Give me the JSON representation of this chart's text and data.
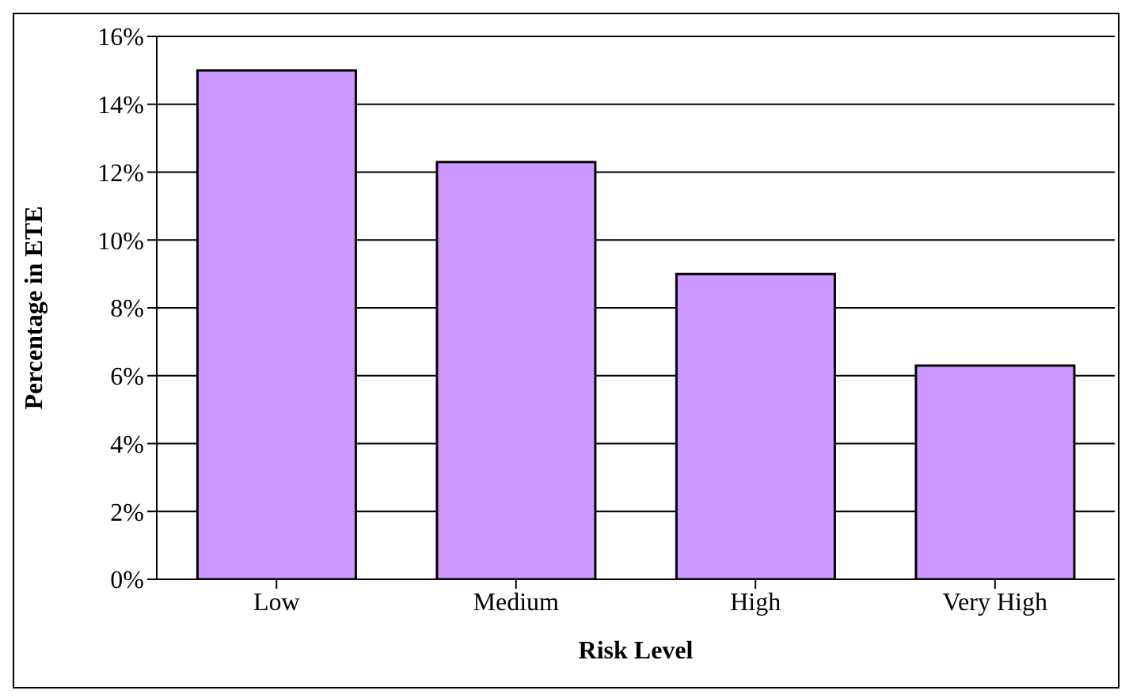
{
  "chart_data": {
    "type": "bar",
    "xlabel": "Risk Level",
    "ylabel": "Percentage in ETE",
    "categories": [
      "Low",
      "Medium",
      "High",
      "Very High"
    ],
    "values": [
      15.0,
      12.3,
      9.0,
      6.3
    ],
    "color": "#cc99ff",
    "ylim": [
      0,
      16
    ],
    "yticks": [
      {
        "value": 0,
        "label": "0%"
      },
      {
        "value": 2,
        "label": "2%"
      },
      {
        "value": 4,
        "label": "4%"
      },
      {
        "value": 6,
        "label": "6%"
      },
      {
        "value": 8,
        "label": "8%"
      },
      {
        "value": 10,
        "label": "10%"
      },
      {
        "value": 12,
        "label": "12%"
      },
      {
        "value": 14,
        "label": "14%"
      },
      {
        "value": 16,
        "label": "16%"
      }
    ],
    "grid": "y",
    "legend": false
  }
}
